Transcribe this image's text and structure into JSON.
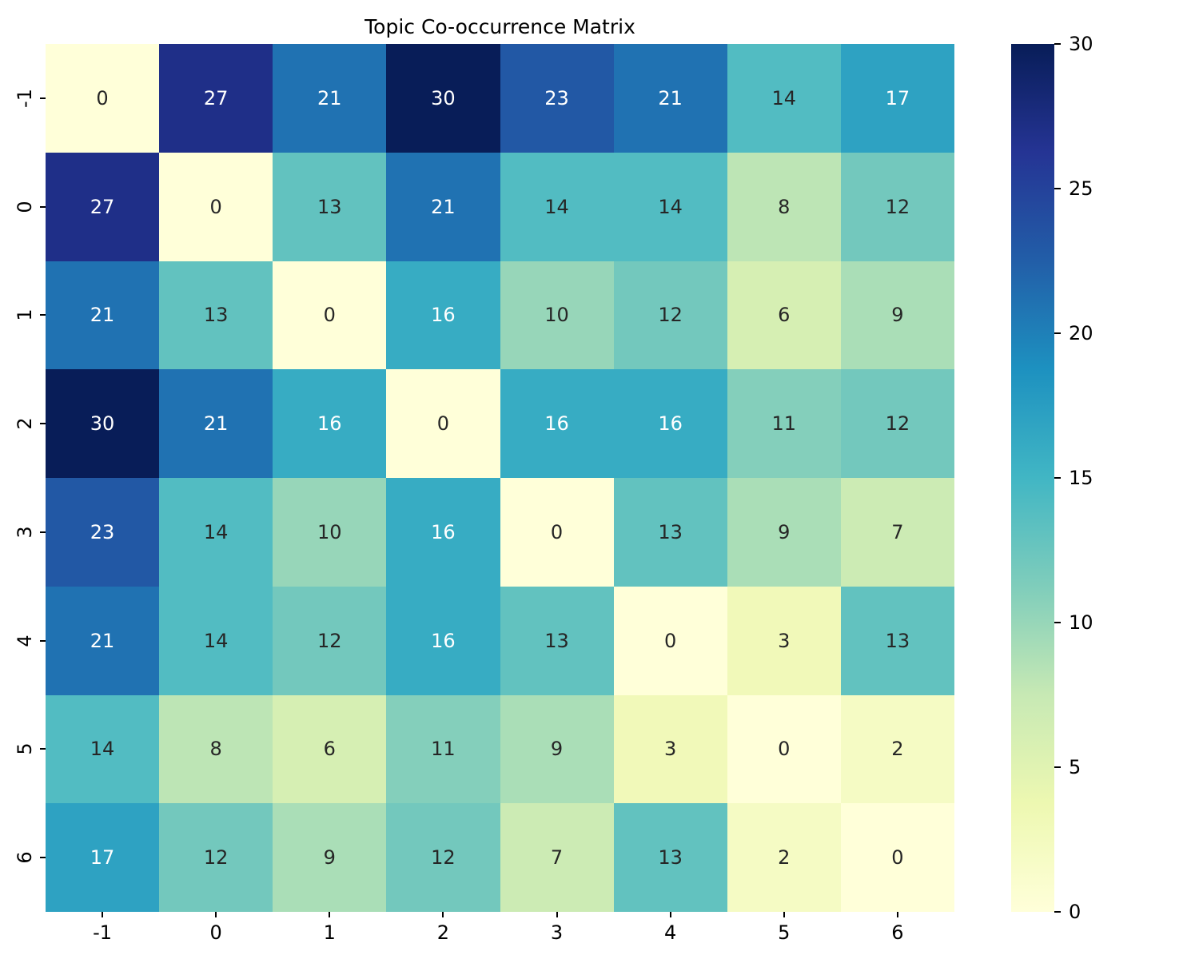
{
  "title": "Topic Co-occurrence Matrix",
  "chart_data": {
    "type": "heatmap",
    "title": "Topic Co-occurrence Matrix",
    "x_labels": [
      "-1",
      "0",
      "1",
      "2",
      "3",
      "4",
      "5",
      "6"
    ],
    "y_labels": [
      "-1",
      "0",
      "1",
      "2",
      "3",
      "4",
      "5",
      "6"
    ],
    "matrix": [
      [
        0,
        27,
        21,
        30,
        23,
        21,
        14,
        17
      ],
      [
        27,
        0,
        13,
        21,
        14,
        14,
        8,
        12
      ],
      [
        21,
        13,
        0,
        16,
        10,
        12,
        6,
        9
      ],
      [
        30,
        21,
        16,
        0,
        16,
        16,
        11,
        12
      ],
      [
        23,
        14,
        10,
        16,
        0,
        13,
        9,
        7
      ],
      [
        21,
        14,
        12,
        16,
        13,
        0,
        3,
        13
      ],
      [
        14,
        8,
        6,
        11,
        9,
        3,
        0,
        2
      ],
      [
        17,
        12,
        9,
        12,
        7,
        13,
        2,
        0
      ]
    ],
    "vmin": 0,
    "vmax": 30,
    "colormap": {
      "name": "YlGnBu",
      "stops": [
        "#ffffd9",
        "#edf8b1",
        "#c7e9b4",
        "#7fcdbb",
        "#41b6c4",
        "#1d91c0",
        "#225ea8",
        "#253494",
        "#081d58"
      ]
    },
    "colorbar_ticks": [
      0,
      5,
      10,
      15,
      20,
      25,
      30
    ],
    "colorbar_position": "right",
    "annotation_color_light": "#ffffff",
    "annotation_color_dark": "#262626",
    "tick_color": "#000000",
    "background": "#ffffff",
    "grid": false
  }
}
